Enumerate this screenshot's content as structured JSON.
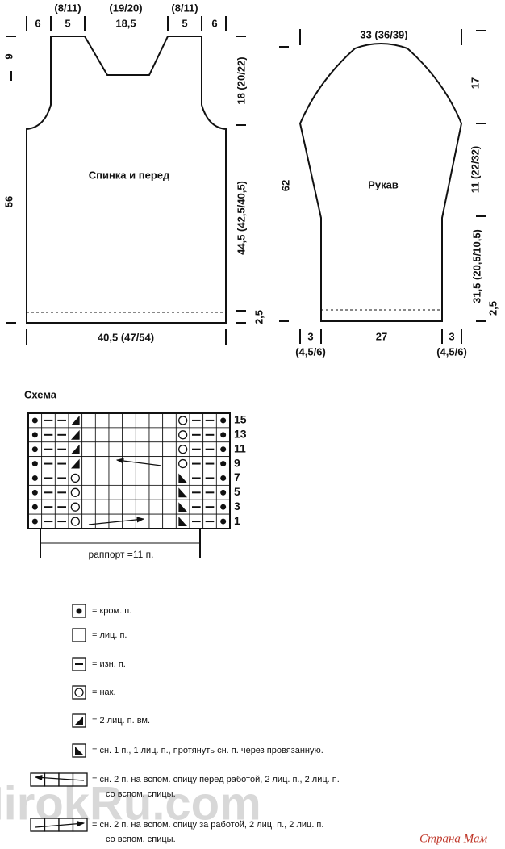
{
  "body": {
    "title": "Спинка и перед",
    "top_widths": [
      "6",
      "5",
      "18,5",
      "5",
      "6"
    ],
    "top_alt": [
      "(8/11)",
      "(19/20)",
      "(8/11)"
    ],
    "left": [
      "9",
      "56"
    ],
    "right": [
      "18 (20/22)",
      "44,5 (42,5/40,5)",
      "2,5"
    ],
    "bottom": "40,5 (47/54)"
  },
  "sleeve": {
    "title": "Рукав",
    "top": "33 (36/39)",
    "left": "62",
    "right": [
      "17",
      "11 (22/32)",
      "31,5 (20,5/10,5)",
      "2,5"
    ],
    "bottom": [
      "3",
      "(4,5/6)",
      "27",
      "3",
      "(4,5/6)"
    ]
  },
  "chart": {
    "title": "Схема",
    "rows": [
      "15",
      "13",
      "11",
      "9",
      "7",
      "5",
      "3",
      "1"
    ],
    "repeat": "раппорт =11 п."
  },
  "legend": [
    {
      "text": "= кром. п."
    },
    {
      "text": "= лиц. п."
    },
    {
      "text": "= изн. п."
    },
    {
      "text": "= нак."
    },
    {
      "text": "= 2 лиц. п. вм."
    },
    {
      "text": "= сн. 1 п., 1 лиц. п., протянуть сн. п. через провязанную."
    },
    {
      "text": [
        "= сн. 2 п. на вспом. спицу перед работой, 2 лиц. п., 2 лиц. п.",
        "со вспом. спицы."
      ]
    },
    {
      "text": [
        "= сн. 2 п. на вспом. спицу за работой, 2 лиц. п., 2 лиц. п.",
        "со вспом. спицы."
      ]
    }
  ],
  "watermark": [
    "MirokRu.com",
    "Страна Мам"
  ]
}
